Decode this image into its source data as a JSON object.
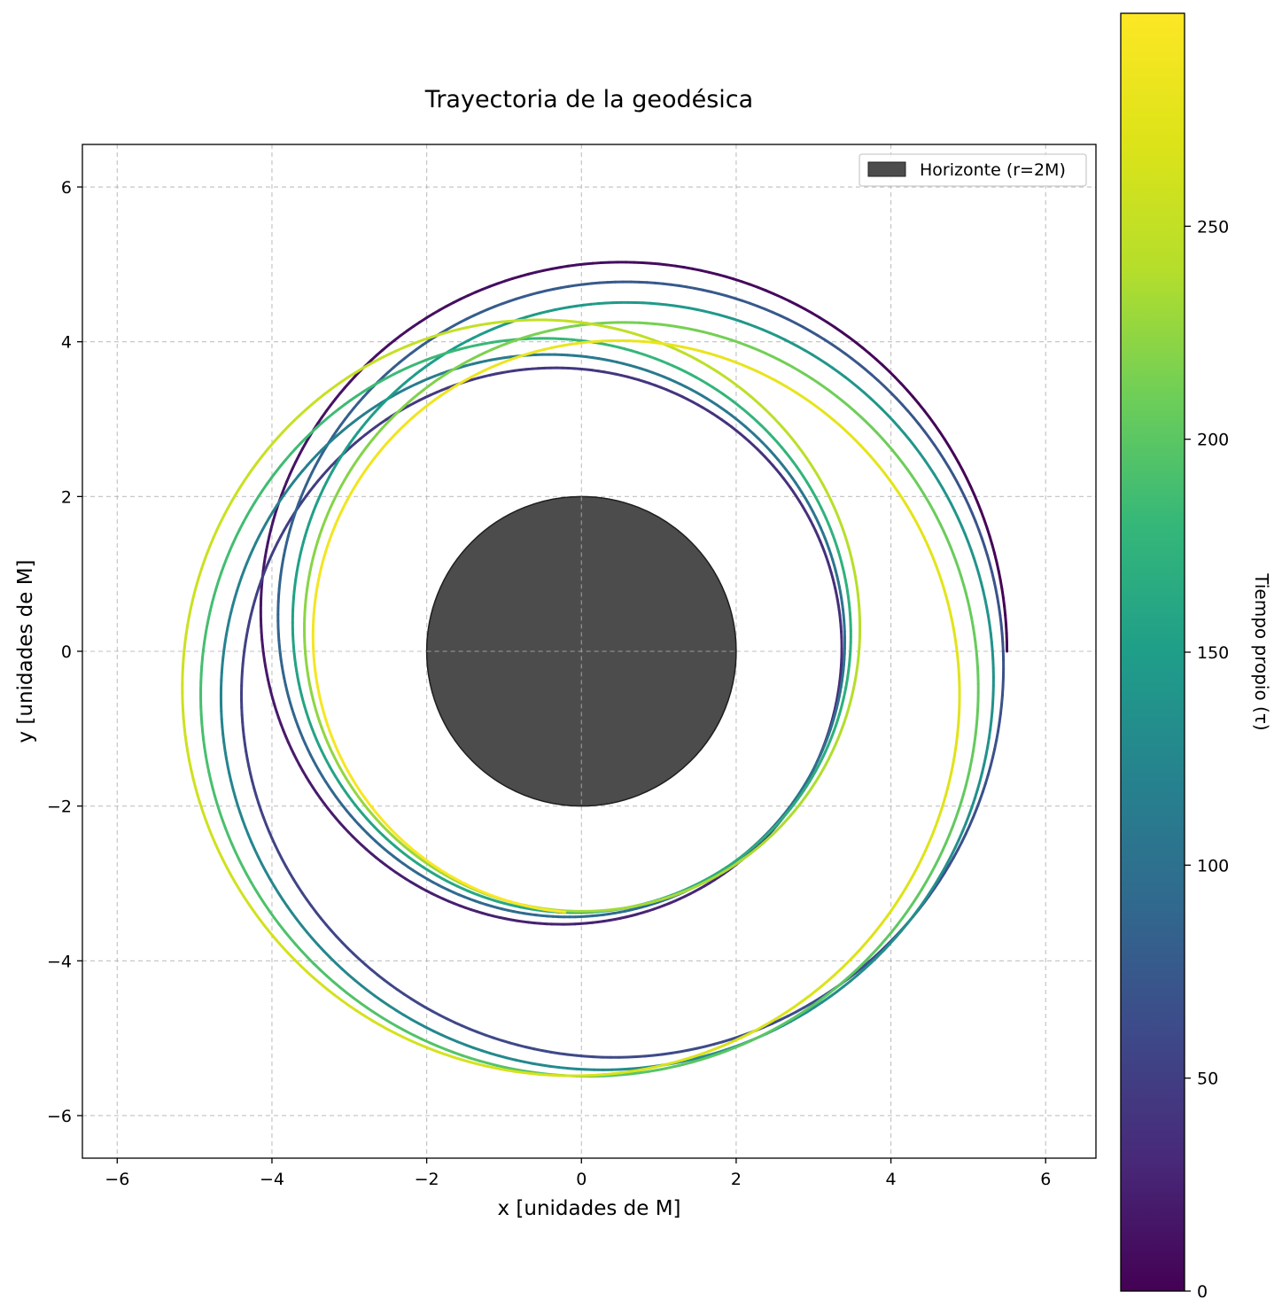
{
  "chart_data": {
    "type": "line",
    "title": "Trayectoria de la geodésica",
    "xlabel": "x [unidades de M]",
    "ylabel": "y [unidades de M]",
    "xlim": [
      -6.45,
      6.65
    ],
    "ylim": [
      -6.55,
      6.55
    ],
    "xticks": [
      -6,
      -4,
      -2,
      0,
      2,
      4,
      6
    ],
    "yticks": [
      -6,
      -4,
      -2,
      0,
      2,
      4,
      6
    ],
    "xtick_labels": [
      "−6",
      "−4",
      "−2",
      "0",
      "2",
      "4",
      "6"
    ],
    "ytick_labels": [
      "−6",
      "−4",
      "−2",
      "0",
      "2",
      "4",
      "6"
    ],
    "grid": true,
    "legend_position": "top-right",
    "legend": [
      "Horizonte (r=2M)"
    ],
    "horizon": {
      "label": "Horizonte (r=2M)",
      "radius": 2,
      "color": "#4c4c4c"
    },
    "orbit": {
      "r_apoapsis": 5.5,
      "r_periapsis": 3.36,
      "periapsis_angle_start_deg": 180,
      "precession_per_orbit_deg": 173.2,
      "revolutions": 8.74,
      "tau_max": 300,
      "start_point": [
        5.5,
        0
      ],
      "end_point": [
        2.62,
        -2.38
      ]
    },
    "colorbar": {
      "label": "Tiempo propio (τ)",
      "colormap": "viridis",
      "vmin": 0,
      "vmax": 300,
      "ticks": [
        0,
        50,
        100,
        150,
        200,
        250
      ],
      "tick_labels": [
        "0",
        "50",
        "100",
        "150",
        "200",
        "250"
      ]
    }
  }
}
